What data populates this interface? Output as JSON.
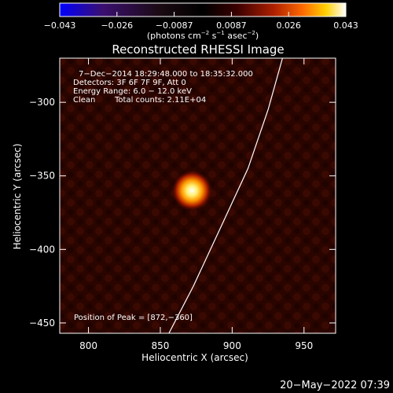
{
  "colorbar": {
    "ticks": [
      "−0.043",
      "−0.026",
      "−0.0087",
      "0.0087",
      "0.026",
      "0.043"
    ],
    "units": {
      "prefix": "(photons cm",
      "exp1": "−2",
      "mid1": " s",
      "exp2": "−1",
      "mid2": " asec",
      "exp3": "−2",
      "suffix": ")"
    },
    "colors": [
      "#0000ff",
      "#3b0f70",
      "#1a0a12",
      "#000000",
      "#3a0000",
      "#b02000",
      "#ff6a00",
      "#ffd000",
      "#ffffff"
    ]
  },
  "chart_data": {
    "type": "heatmap",
    "title": "Reconstructed RHESSI Image",
    "xlabel": "Heliocentric X (arcsec)",
    "ylabel": "Heliocentric Y (arcsec)",
    "xlim": [
      780,
      972
    ],
    "ylim": [
      -457,
      -270
    ],
    "xticks": [
      800,
      850,
      900,
      950
    ],
    "yticks": [
      -300,
      -350,
      -400,
      -450
    ],
    "xtick_labels": [
      "800",
      "850",
      "900",
      "950"
    ],
    "ytick_labels": [
      "−300",
      "−350",
      "−400",
      "−450"
    ],
    "peak": {
      "x": 872,
      "y": -360
    },
    "limb": [
      {
        "x": 856,
        "y": -457
      },
      {
        "x": 873,
        "y": -425
      },
      {
        "x": 892,
        "y": -385
      },
      {
        "x": 911,
        "y": -345
      },
      {
        "x": 925,
        "y": -305
      },
      {
        "x": 935,
        "y": -270
      }
    ],
    "annotations": {
      "time": "7−Dec−2014 18:29:48.000 to 18:35:32.000",
      "detectors": "Detectors: 3F 6F 7F 9F, Att 0",
      "energy": "Energy Range: 6.0 − 12.0 keV",
      "method": "Clean",
      "counts": "Total counts: 2.11E+04",
      "peak_label": "Position of Peak = [872,−360]"
    }
  },
  "footer": {
    "timestamp": "20−May−2022 07:39"
  }
}
